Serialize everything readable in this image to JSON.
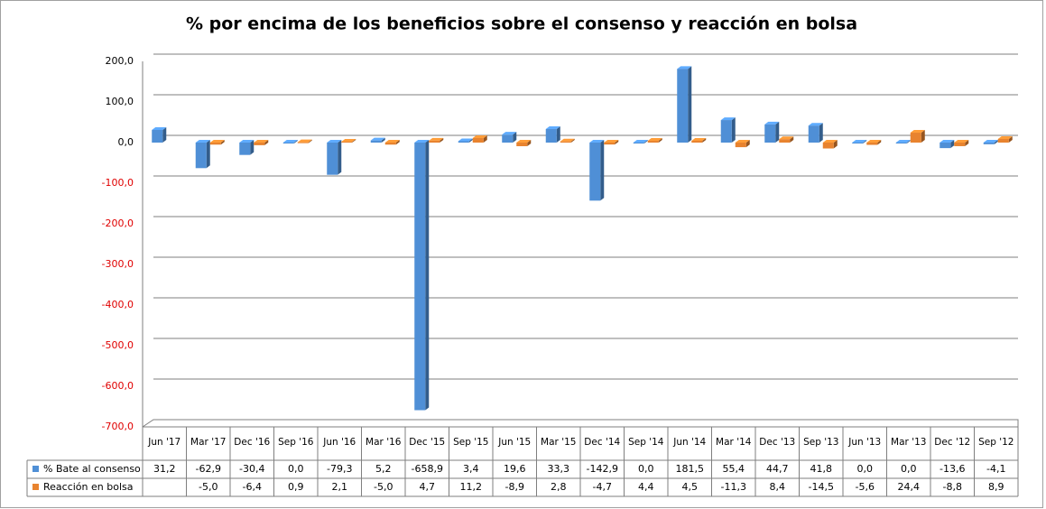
{
  "chart_data": {
    "type": "bar",
    "title": "% por encima de los beneficios sobre el consenso y reacción en bolsa",
    "categories": [
      "Jun '17",
      "Mar '17",
      "Dec '16",
      "Sep '16",
      "Jun '16",
      "Mar '16",
      "Dec '15",
      "Sep '15",
      "Jun '15",
      "Mar '15",
      "Dec '14",
      "Sep '14",
      "Jun '14",
      "Mar '14",
      "Dec '13",
      "Sep '13",
      "Jun '13",
      "Mar '13",
      "Dec '12",
      "Sep '12"
    ],
    "series": [
      {
        "name": "% Bate al consenso",
        "color": "#4f8fd6",
        "values": [
          31.2,
          -62.9,
          -30.4,
          0.0,
          -79.3,
          5.2,
          -658.9,
          3.4,
          19.6,
          33.3,
          -142.9,
          0.0,
          181.5,
          55.4,
          44.7,
          41.8,
          0.0,
          0.0,
          -13.6,
          -4.1
        ],
        "value_labels": [
          "31,2",
          "-62,9",
          "-30,4",
          "0,0",
          "-79,3",
          "5,2",
          "-658,9",
          "3,4",
          "19,6",
          "33,3",
          "-142,9",
          "0,0",
          "181,5",
          "55,4",
          "44,7",
          "41,8",
          "0,0",
          "0,0",
          "-13,6",
          "-4,1"
        ]
      },
      {
        "name": "Reacción en bolsa",
        "color": "#e8832f",
        "values": [
          null,
          -5.0,
          -6.4,
          0.9,
          2.1,
          -5.0,
          4.7,
          11.2,
          -8.9,
          2.8,
          -4.7,
          4.4,
          4.5,
          -11.3,
          8.4,
          -14.5,
          -5.6,
          24.4,
          -8.8,
          8.9
        ],
        "value_labels": [
          null,
          "-5,0",
          "-6,4",
          "0,9",
          "2,1",
          "-5,0",
          "4,7",
          "11,2",
          "-8,9",
          "2,8",
          "-4,7",
          "4,4",
          "4,5",
          "-11,3",
          "8,4",
          "-14,5",
          "-5,6",
          "24,4",
          "-8,8",
          "8,9"
        ]
      }
    ],
    "ylim": [
      -700,
      200
    ],
    "yticks": [
      {
        "value": 200,
        "label": "200,0"
      },
      {
        "value": 100,
        "label": "100,0"
      },
      {
        "value": 0,
        "label": "0,0"
      },
      {
        "value": -100,
        "label": "-100,0"
      },
      {
        "value": -200,
        "label": "-200,0"
      },
      {
        "value": -300,
        "label": "-300,0"
      },
      {
        "value": -400,
        "label": "-400,0"
      },
      {
        "value": -500,
        "label": "-500,0"
      },
      {
        "value": -600,
        "label": "-600,0"
      },
      {
        "value": -700,
        "label": "-700,0"
      }
    ],
    "grid": true
  }
}
